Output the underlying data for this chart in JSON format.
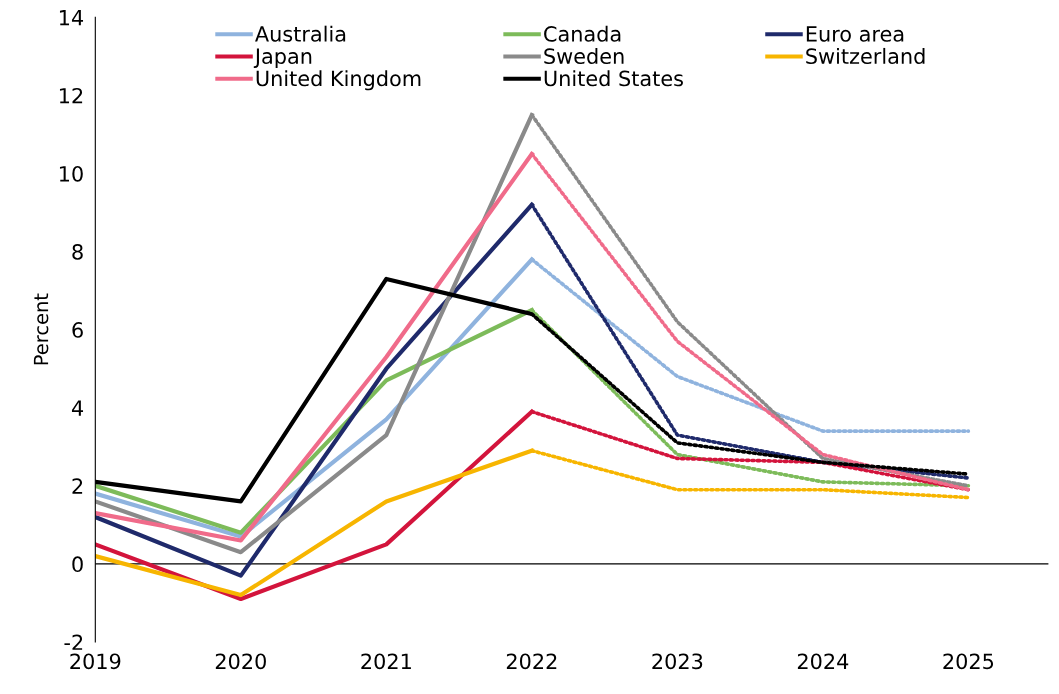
{
  "chart_data": {
    "type": "line",
    "ylabel": "Percent",
    "xlim": [
      2019,
      2025.55
    ],
    "xticks": [
      2019,
      2020,
      2021,
      2022,
      2023,
      2024,
      2025
    ],
    "ylim": [
      -2,
      14
    ],
    "yticks": [
      -2,
      0,
      2,
      4,
      6,
      8,
      10,
      12,
      14
    ],
    "grid": false,
    "legend": "top",
    "marker": "none",
    "ref_lines": [
      {
        "axis": "y",
        "value": 0,
        "color": "#000000"
      }
    ],
    "series": [
      {
        "name": "Australia",
        "color": "#8fb3de",
        "x": [
          2019,
          2020,
          2021,
          2022
        ],
        "values": [
          1.8,
          0.7,
          3.7,
          7.8
        ]
      },
      {
        "name": "Canada",
        "color": "#7dbb5a",
        "x": [
          2019,
          2020,
          2021,
          2022
        ],
        "values": [
          2.0,
          0.8,
          4.7,
          6.5
        ]
      },
      {
        "name": "Euro area",
        "color": "#1f2a6b",
        "x": [
          2019,
          2020,
          2021,
          2022
        ],
        "values": [
          1.2,
          -0.3,
          5.0,
          9.2
        ]
      },
      {
        "name": "Japan",
        "color": "#d3143c",
        "x": [
          2019,
          2020,
          2021,
          2022
        ],
        "values": [
          0.5,
          -0.9,
          0.5,
          3.9
        ]
      },
      {
        "name": "Sweden",
        "color": "#8a8a8a",
        "x": [
          2019,
          2020,
          2021,
          2022
        ],
        "values": [
          1.6,
          0.3,
          3.3,
          11.5
        ]
      },
      {
        "name": "Switzerland",
        "color": "#f7b500",
        "x": [
          2019,
          2020,
          2021,
          2022
        ],
        "values": [
          0.2,
          -0.8,
          1.6,
          2.9
        ]
      },
      {
        "name": "United Kingdom",
        "color": "#f06b8a",
        "x": [
          2019,
          2020,
          2021,
          2022
        ],
        "values": [
          1.3,
          0.6,
          5.3,
          10.5
        ]
      },
      {
        "name": "United States",
        "color": "#000000",
        "x": [
          2019,
          2020,
          2021,
          2022
        ],
        "values": [
          2.1,
          1.6,
          7.3,
          6.4
        ]
      },
      {
        "color": "#8fb3de",
        "line_style": "dotted",
        "x": [
          2022,
          2023,
          2024,
          2025
        ],
        "values": [
          7.8,
          4.8,
          3.4,
          3.4
        ]
      },
      {
        "color": "#7dbb5a",
        "line_style": "dotted",
        "x": [
          2022,
          2023,
          2024,
          2025
        ],
        "values": [
          6.5,
          2.8,
          2.1,
          2.0
        ]
      },
      {
        "color": "#1f2a6b",
        "line_style": "dotted",
        "x": [
          2022,
          2023,
          2024,
          2025
        ],
        "values": [
          9.2,
          3.3,
          2.6,
          2.2
        ]
      },
      {
        "color": "#d3143c",
        "line_style": "dotted",
        "x": [
          2022,
          2023,
          2024,
          2025
        ],
        "values": [
          3.9,
          2.7,
          2.6,
          1.9
        ]
      },
      {
        "color": "#8a8a8a",
        "line_style": "dotted",
        "x": [
          2022,
          2023,
          2024,
          2025
        ],
        "values": [
          11.5,
          6.2,
          2.7,
          2.0
        ]
      },
      {
        "color": "#f7b500",
        "line_style": "dotted",
        "x": [
          2022,
          2023,
          2024,
          2025
        ],
        "values": [
          2.9,
          1.9,
          1.9,
          1.7
        ]
      },
      {
        "color": "#f06b8a",
        "line_style": "dotted",
        "x": [
          2022,
          2023,
          2024,
          2025
        ],
        "values": [
          10.5,
          5.7,
          2.8,
          1.9
        ]
      },
      {
        "color": "#000000",
        "line_style": "dotted",
        "x": [
          2022,
          2023,
          2024,
          2025
        ],
        "values": [
          6.4,
          3.1,
          2.6,
          2.3
        ]
      }
    ]
  }
}
